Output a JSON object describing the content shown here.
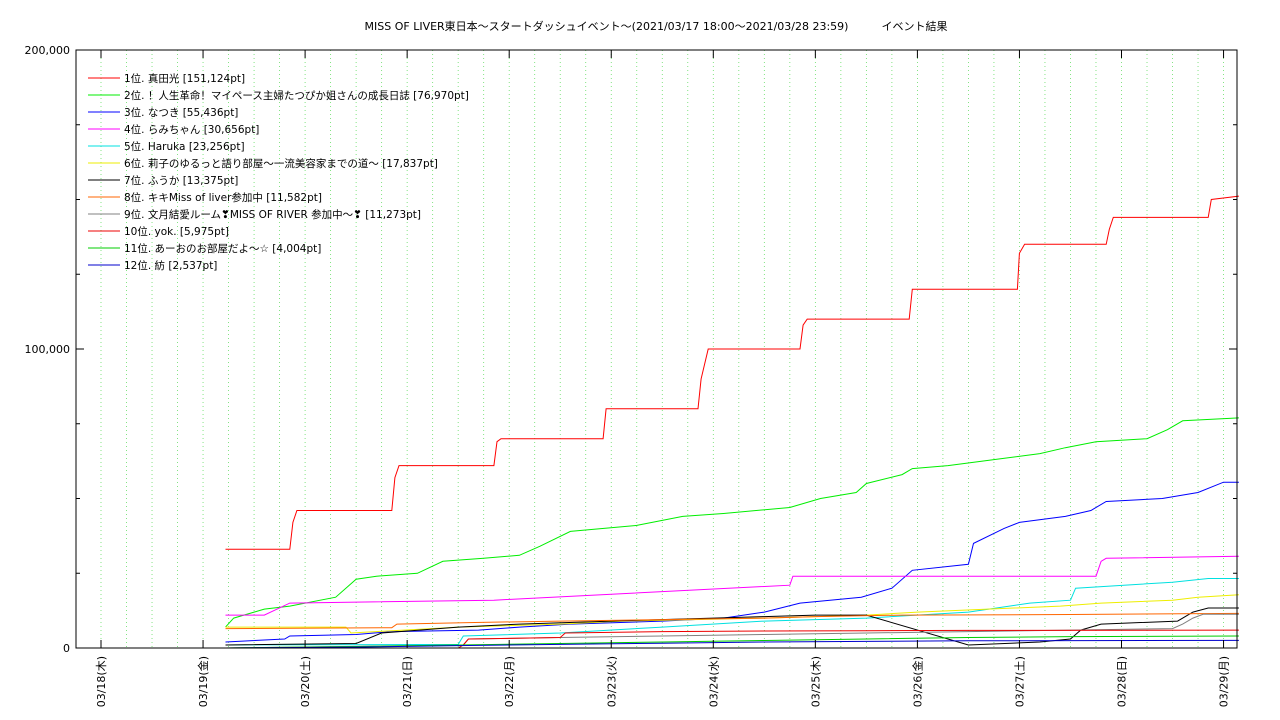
{
  "chart_data": {
    "type": "line",
    "title": "MISS OF LIVER東日本〜スタートダッシュイベント〜(2021/03/17 18:00〜2021/03/28 23:59)　　　イベント結果",
    "xlabel": "",
    "ylabel": "",
    "ylim": [
      0,
      200000
    ],
    "yticks": [
      "0",
      "100,000",
      "200,000"
    ],
    "xticks": [
      "03/18(木)",
      "03/19(金)",
      "03/20(土)",
      "03/21(日)",
      "03/22(月)",
      "03/23(火)",
      "03/24(水)",
      "03/25(木)",
      "03/26(金)",
      "03/27(土)",
      "03/28(日)",
      "03/29(月)"
    ],
    "xlim": [
      "03/17 18:00",
      "03/29 01:00"
    ],
    "x_unit": "days after 03/18 00:00",
    "grid": "dotted green vertical lines every 6 hours",
    "legend": "top-left",
    "series": [
      {
        "name": "1位. 真田光 [151,124pt]",
        "color": "#ff0000",
        "points": [
          [
            1.22,
            33000
          ],
          [
            1.85,
            33000
          ],
          [
            1.88,
            42000
          ],
          [
            1.92,
            46000
          ],
          [
            2.85,
            46000
          ],
          [
            2.88,
            57000
          ],
          [
            2.92,
            61000
          ],
          [
            3.85,
            61000
          ],
          [
            3.88,
            69000
          ],
          [
            3.92,
            70000
          ],
          [
            4.92,
            70000
          ],
          [
            4.95,
            80000
          ],
          [
            5.85,
            80000
          ],
          [
            5.88,
            90000
          ],
          [
            5.95,
            100000
          ],
          [
            6.85,
            100000
          ],
          [
            6.88,
            108000
          ],
          [
            6.92,
            110000
          ],
          [
            7.92,
            110000
          ],
          [
            7.95,
            120000
          ],
          [
            8.98,
            120000
          ],
          [
            9.0,
            132000
          ],
          [
            9.05,
            135000
          ],
          [
            9.85,
            135000
          ],
          [
            9.88,
            140000
          ],
          [
            9.92,
            144000
          ],
          [
            10.85,
            144000
          ],
          [
            10.88,
            150000
          ],
          [
            11.15,
            151124
          ]
        ]
      },
      {
        "name": "2位. ！人生革命！マイペース主婦たつぴか姐さんの成長日誌 [76,970pt]",
        "color": "#00ee00",
        "points": [
          [
            1.22,
            7000
          ],
          [
            1.3,
            10000
          ],
          [
            1.5,
            12000
          ],
          [
            1.6,
            13000
          ],
          [
            1.85,
            14000
          ],
          [
            2.3,
            17000
          ],
          [
            2.5,
            23000
          ],
          [
            2.7,
            24000
          ],
          [
            3.1,
            25000
          ],
          [
            3.35,
            29000
          ],
          [
            3.75,
            30000
          ],
          [
            4.1,
            31000
          ],
          [
            4.3,
            34000
          ],
          [
            4.6,
            39000
          ],
          [
            5.25,
            41000
          ],
          [
            5.7,
            44000
          ],
          [
            6.1,
            45000
          ],
          [
            6.75,
            47000
          ],
          [
            7.05,
            50000
          ],
          [
            7.4,
            52000
          ],
          [
            7.5,
            55000
          ],
          [
            7.85,
            58000
          ],
          [
            7.95,
            60000
          ],
          [
            8.3,
            61000
          ],
          [
            8.75,
            63000
          ],
          [
            9.2,
            65000
          ],
          [
            9.45,
            67000
          ],
          [
            9.75,
            69000
          ],
          [
            10.25,
            70000
          ],
          [
            10.45,
            73000
          ],
          [
            10.6,
            76000
          ],
          [
            11.15,
            76970
          ]
        ]
      },
      {
        "name": "3位. なつき [55,436pt]",
        "color": "#0000ff",
        "points": [
          [
            1.22,
            2000
          ],
          [
            1.8,
            3000
          ],
          [
            1.85,
            4000
          ],
          [
            2.5,
            4500
          ],
          [
            2.85,
            5500
          ],
          [
            3.7,
            6000
          ],
          [
            4.1,
            7000
          ],
          [
            4.6,
            8000
          ],
          [
            5.5,
            9000
          ],
          [
            6.1,
            10000
          ],
          [
            6.5,
            12000
          ],
          [
            6.85,
            15000
          ],
          [
            7.45,
            17000
          ],
          [
            7.75,
            20000
          ],
          [
            7.95,
            26000
          ],
          [
            8.5,
            28000
          ],
          [
            8.55,
            35000
          ],
          [
            8.85,
            40000
          ],
          [
            9.0,
            42000
          ],
          [
            9.45,
            44000
          ],
          [
            9.7,
            46000
          ],
          [
            9.85,
            49000
          ],
          [
            10.4,
            50000
          ],
          [
            10.75,
            52000
          ],
          [
            11.0,
            55436
          ],
          [
            11.15,
            55436
          ]
        ]
      },
      {
        "name": "4位. らみちゃん [30,656pt]",
        "color": "#ff00ff",
        "points": [
          [
            1.22,
            11000
          ],
          [
            1.6,
            11000
          ],
          [
            1.85,
            15000
          ],
          [
            3.85,
            16000
          ],
          [
            6.75,
            21000
          ],
          [
            6.78,
            24000
          ],
          [
            9.75,
            24000
          ],
          [
            9.8,
            29000
          ],
          [
            9.85,
            30000
          ],
          [
            11.15,
            30656
          ]
        ]
      },
      {
        "name": "5位. Haruka [23,256pt]",
        "color": "#00e0e0",
        "points": [
          [
            1.22,
            1000
          ],
          [
            3.5,
            1200
          ],
          [
            3.55,
            4000
          ],
          [
            4.5,
            5000
          ],
          [
            5.5,
            7000
          ],
          [
            6.5,
            9000
          ],
          [
            7.5,
            10000
          ],
          [
            8.5,
            12000
          ],
          [
            9.1,
            15000
          ],
          [
            9.5,
            16000
          ],
          [
            9.55,
            20000
          ],
          [
            10.5,
            22000
          ],
          [
            10.85,
            23256
          ],
          [
            11.15,
            23256
          ]
        ]
      },
      {
        "name": "6位. 莉子のゆるっと語り部屋〜一流美容家までの道〜 [17,837pt]",
        "color": "#eeee00",
        "points": [
          [
            1.22,
            7000
          ],
          [
            2.4,
            7000
          ],
          [
            2.45,
            5000
          ],
          [
            3.5,
            7000
          ],
          [
            4.5,
            8000
          ],
          [
            5.1,
            9000
          ],
          [
            6.5,
            10000
          ],
          [
            7.5,
            11000
          ],
          [
            8.0,
            12000
          ],
          [
            9.4,
            14000
          ],
          [
            9.8,
            15000
          ],
          [
            10.5,
            16000
          ],
          [
            10.75,
            17000
          ],
          [
            11.15,
            17837
          ]
        ]
      },
      {
        "name": "7位. ふうか [13,375pt]",
        "color": "#000000",
        "points": [
          [
            1.22,
            1000
          ],
          [
            2.5,
            1500
          ],
          [
            2.75,
            5000
          ],
          [
            3.5,
            7000
          ],
          [
            4.1,
            8000
          ],
          [
            5.0,
            9000
          ],
          [
            6.0,
            10000
          ],
          [
            6.5,
            10500
          ],
          [
            7.0,
            11000
          ],
          [
            7.5,
            11000
          ],
          [
            8.5,
            1000
          ],
          [
            9.2,
            2000
          ],
          [
            9.5,
            3000
          ],
          [
            9.6,
            6000
          ],
          [
            9.8,
            8000
          ],
          [
            10.55,
            9000
          ],
          [
            10.7,
            12000
          ],
          [
            10.85,
            13375
          ],
          [
            11.15,
            13375
          ]
        ]
      },
      {
        "name": "8位. キキMiss of liver参加中 [11,582pt]",
        "color": "#ff6600",
        "points": [
          [
            1.22,
            6500
          ],
          [
            2.85,
            6800
          ],
          [
            2.9,
            8000
          ],
          [
            3.6,
            8500
          ],
          [
            4.5,
            9000
          ],
          [
            5.5,
            9500
          ],
          [
            6.5,
            10000
          ],
          [
            7.0,
            10500
          ],
          [
            7.85,
            11000
          ],
          [
            9.5,
            11200
          ],
          [
            11.15,
            11582
          ]
        ]
      },
      {
        "name": "9位. 文月結愛ルーム❣MISS OF RIVER 参加中〜❣ [11,273pt]",
        "color": "#808080",
        "points": [
          [
            1.22,
            0
          ],
          [
            3.55,
            1000
          ],
          [
            3.6,
            3000
          ],
          [
            4.5,
            3500
          ],
          [
            5.5,
            4000
          ],
          [
            6.5,
            4500
          ],
          [
            7.5,
            5000
          ],
          [
            8.5,
            5500
          ],
          [
            9.5,
            6000
          ],
          [
            10.5,
            6500
          ],
          [
            10.6,
            8000
          ],
          [
            10.7,
            10000
          ],
          [
            10.8,
            11273
          ],
          [
            11.15,
            11273
          ]
        ]
      },
      {
        "name": "10位. yok. [5,975pt]",
        "color": "#ee0000",
        "points": [
          [
            1.22,
            0
          ],
          [
            3.5,
            0
          ],
          [
            3.55,
            1000
          ],
          [
            3.6,
            3000
          ],
          [
            4.5,
            3500
          ],
          [
            4.55,
            5000
          ],
          [
            5.5,
            5500
          ],
          [
            6.5,
            5700
          ],
          [
            7.5,
            5800
          ],
          [
            8.5,
            5900
          ],
          [
            11.15,
            5975
          ]
        ]
      },
      {
        "name": "11位. あーおのお部屋だよ〜☆ [4,004pt]",
        "color": "#00cc00",
        "points": [
          [
            1.22,
            0
          ],
          [
            2.5,
            500
          ],
          [
            3.5,
            1000
          ],
          [
            4.5,
            1500
          ],
          [
            5.5,
            2000
          ],
          [
            6.5,
            2500
          ],
          [
            7.5,
            3000
          ],
          [
            8.5,
            3500
          ],
          [
            9.5,
            3800
          ],
          [
            11.15,
            4004
          ]
        ]
      },
      {
        "name": "12位. 紡 [2,537pt]",
        "color": "#0000cc",
        "points": [
          [
            1.22,
            0
          ],
          [
            2.5,
            300
          ],
          [
            3.5,
            800
          ],
          [
            4.5,
            1200
          ],
          [
            5.5,
            1600
          ],
          [
            6.5,
            2000
          ],
          [
            7.5,
            2200
          ],
          [
            8.5,
            2400
          ],
          [
            11.15,
            2537
          ]
        ]
      }
    ]
  }
}
